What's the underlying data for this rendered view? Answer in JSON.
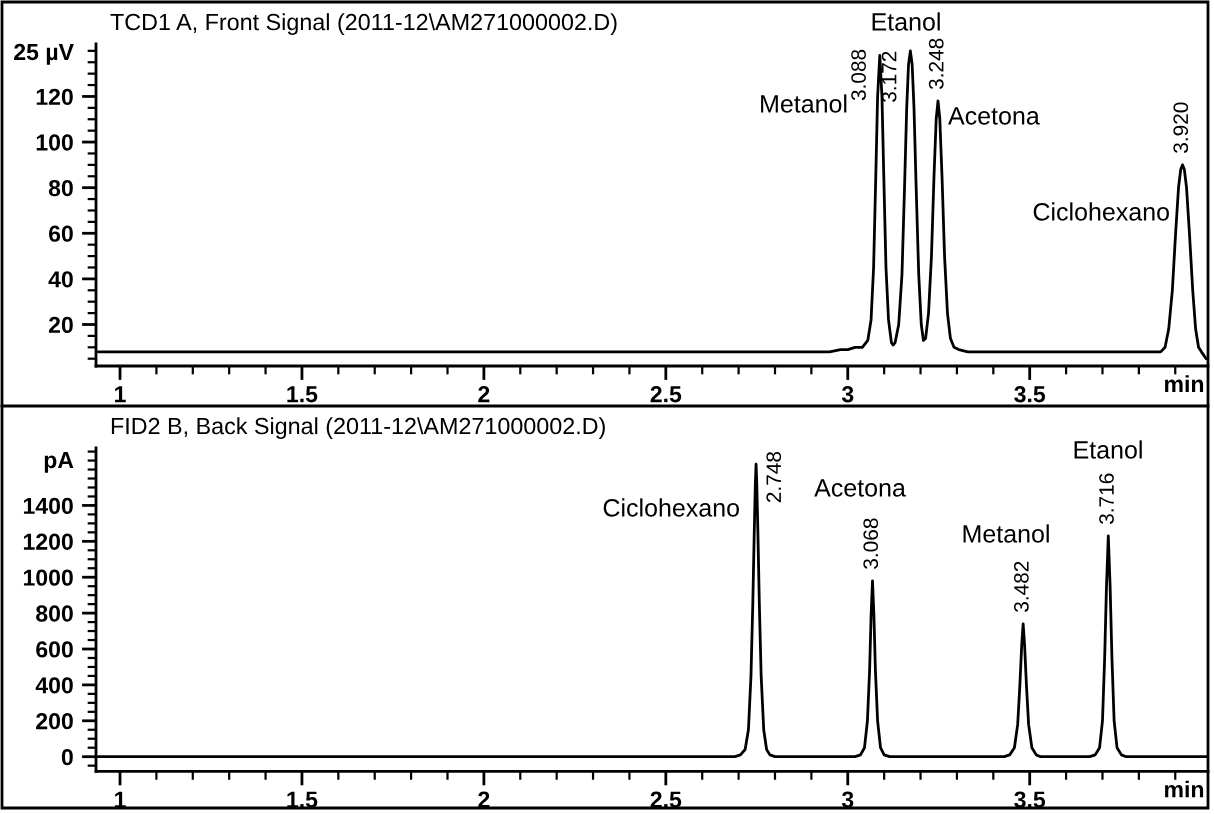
{
  "chart_data": [
    {
      "type": "line",
      "title": "TCD1 A, Front Signal (2011-12\\AM271000002.D)",
      "xlabel": "min",
      "ylabel": "25 µV",
      "color": "#000000",
      "x": [
        0.94,
        2.95,
        2.98,
        3.0,
        3.02,
        3.04,
        3.055,
        3.064,
        3.071,
        3.077,
        3.082,
        3.088,
        3.094,
        3.099,
        3.105,
        3.112,
        3.12,
        3.125,
        3.13,
        3.14,
        3.149,
        3.156,
        3.162,
        3.167,
        3.172,
        3.177,
        3.182,
        3.188,
        3.195,
        3.202,
        3.208,
        3.214,
        3.222,
        3.23,
        3.237,
        3.243,
        3.248,
        3.253,
        3.259,
        3.266,
        3.274,
        3.282,
        3.292,
        3.305,
        3.33,
        3.86,
        3.872,
        3.882,
        3.892,
        3.901,
        3.909,
        3.915,
        3.92,
        3.925,
        3.931,
        3.939,
        3.948,
        3.956,
        3.964,
        3.972,
        3.985
      ],
      "values": [
        8,
        8,
        9,
        9,
        10,
        10,
        13,
        22,
        45,
        85,
        120,
        138,
        120,
        85,
        45,
        22,
        12,
        11,
        12,
        20,
        42,
        80,
        115,
        134,
        140,
        134,
        115,
        80,
        42,
        20,
        13,
        14,
        25,
        50,
        85,
        110,
        118,
        110,
        85,
        50,
        25,
        14,
        10,
        9,
        8,
        8,
        10,
        18,
        35,
        60,
        80,
        88,
        90,
        88,
        80,
        60,
        35,
        18,
        10,
        8,
        5
      ],
      "xlim": [
        0.934,
        3.99
      ],
      "xticks": [
        1,
        1.5,
        2,
        2.5,
        3,
        3.5
      ],
      "ylim": [
        1.8,
        143
      ],
      "yticks": [
        20,
        40,
        60,
        80,
        100,
        120
      ],
      "annotations": [
        "Metanol",
        {
          "text": "3.088",
          "x": 3.088,
          "y": 138
        },
        "Etanol",
        {
          "text": "3.172",
          "x": 3.172,
          "y": 140
        },
        "Acetona",
        {
          "text": "3.248",
          "x": 3.248,
          "y": 118
        },
        "Ciclohexano",
        {
          "text": "3.920",
          "x": 3.92,
          "y": 90
        }
      ]
    },
    {
      "type": "line",
      "title": "FID2 B, Back Signal (2011-12\\AM271000002.D)",
      "xlabel": "min",
      "ylabel": "pA",
      "color": "#000000",
      "x": [
        0.94,
        2.69,
        2.705,
        2.718,
        2.727,
        2.734,
        2.739,
        2.743,
        2.746,
        2.748,
        2.75,
        2.753,
        2.757,
        2.762,
        2.769,
        2.777,
        2.786,
        2.8,
        3.02,
        3.035,
        3.046,
        3.054,
        3.06,
        3.064,
        3.068,
        3.072,
        3.076,
        3.082,
        3.09,
        3.1,
        3.115,
        3.43,
        3.445,
        3.458,
        3.467,
        3.473,
        3.478,
        3.482,
        3.486,
        3.491,
        3.497,
        3.506,
        3.518,
        3.53,
        3.665,
        3.68,
        3.692,
        3.7,
        3.706,
        3.711,
        3.716,
        3.721,
        3.726,
        3.732,
        3.74,
        3.752,
        3.765,
        3.99
      ],
      "values": [
        0,
        0,
        10,
        40,
        150,
        450,
        850,
        1250,
        1520,
        1630,
        1520,
        1250,
        850,
        450,
        150,
        40,
        10,
        0,
        0,
        10,
        50,
        200,
        480,
        780,
        980,
        780,
        480,
        200,
        50,
        10,
        0,
        0,
        10,
        50,
        180,
        400,
        620,
        740,
        620,
        400,
        180,
        50,
        10,
        0,
        0,
        10,
        50,
        200,
        550,
        950,
        1230,
        950,
        550,
        200,
        50,
        10,
        0,
        0
      ],
      "xlim": [
        0.934,
        3.99
      ],
      "xticks": [
        1,
        1.5,
        2,
        2.5,
        3,
        3.5
      ],
      "ylim": [
        -82,
        1720
      ],
      "yticks": [
        0,
        200,
        400,
        600,
        800,
        1000,
        1200,
        1400
      ],
      "annotations": [
        "Ciclohexano",
        {
          "text": "2.748",
          "x": 2.748,
          "y": 1630
        },
        "Acetona",
        {
          "text": "3.068",
          "x": 3.068,
          "y": 980
        },
        "Metanol",
        {
          "text": "3.482",
          "x": 3.482,
          "y": 740
        },
        "Etanol",
        {
          "text": "3.716",
          "x": 3.716,
          "y": 1230
        }
      ]
    }
  ]
}
